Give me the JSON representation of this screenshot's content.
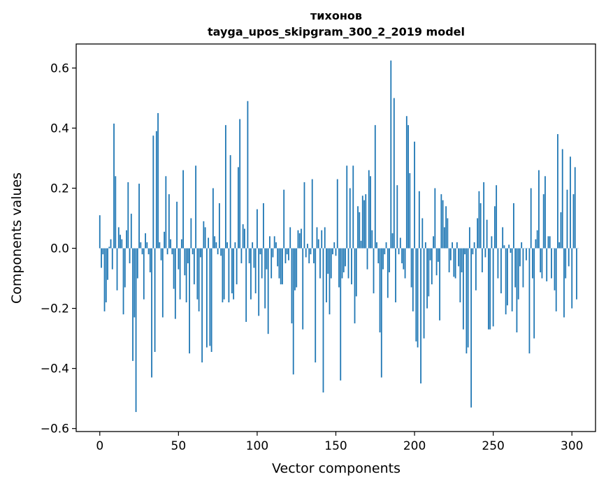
{
  "chart_data": {
    "type": "bar",
    "title": "тихонов",
    "subtitle": "tayga_upos_skipgram_300_2_2019 model",
    "xlabel": "Vector components",
    "ylabel": "Components values",
    "xlim": [
      -15,
      315
    ],
    "ylim": [
      -0.61,
      0.68
    ],
    "xticks": [
      0,
      50,
      100,
      150,
      200,
      250,
      300
    ],
    "yticks": [
      -0.6,
      -0.4,
      -0.2,
      0.0,
      0.2,
      0.4,
      0.6
    ],
    "ytick_labels": [
      "−0.6",
      "−0.4",
      "−0.2",
      "0.0",
      "0.2",
      "0.4",
      "0.6"
    ],
    "grid": false,
    "color": "#1f77b4",
    "x_start": 0,
    "values": [
      0.11,
      -0.065,
      -0.02,
      -0.21,
      -0.18,
      -0.105,
      0.005,
      0.03,
      -0.07,
      0.415,
      0.24,
      -0.14,
      0.07,
      0.045,
      0.03,
      -0.22,
      -0.13,
      0.06,
      0.22,
      -0.05,
      0.115,
      -0.375,
      -0.23,
      -0.545,
      -0.1,
      0.215,
      0.02,
      -0.02,
      -0.17,
      0.05,
      0.02,
      -0.02,
      -0.08,
      -0.43,
      0.375,
      -0.345,
      0.39,
      0.45,
      0.02,
      -0.04,
      -0.23,
      0.055,
      0.24,
      -0.02,
      0.18,
      0.03,
      -0.02,
      -0.135,
      -0.235,
      0.155,
      -0.07,
      -0.17,
      0.03,
      0.26,
      -0.09,
      -0.18,
      -0.05,
      -0.35,
      0.1,
      -0.02,
      -0.12,
      0.275,
      -0.17,
      -0.21,
      -0.03,
      -0.38,
      0.09,
      0.07,
      -0.33,
      0.035,
      -0.325,
      -0.345,
      0.2,
      0.04,
      0.02,
      -0.02,
      0.15,
      -0.025,
      -0.18,
      -0.17,
      0.41,
      0.02,
      -0.18,
      0.31,
      -0.15,
      -0.17,
      0.02,
      -0.12,
      0.27,
      0.43,
      -0.05,
      0.08,
      0.065,
      -0.245,
      0.49,
      -0.05,
      -0.17,
      0.02,
      -0.065,
      -0.15,
      0.13,
      -0.225,
      -0.02,
      -0.1,
      0.15,
      -0.2,
      -0.07,
      -0.285,
      0.04,
      -0.1,
      -0.03,
      0.04,
      0.02,
      -0.06,
      -0.1,
      -0.12,
      -0.12,
      0.195,
      -0.05,
      -0.02,
      -0.04,
      0.07,
      -0.25,
      -0.42,
      -0.14,
      -0.13,
      0.06,
      0.05,
      0.065,
      -0.27,
      0.22,
      -0.03,
      0.015,
      -0.05,
      -0.02,
      0.23,
      -0.05,
      -0.38,
      0.07,
      0.03,
      -0.1,
      0.06,
      -0.48,
      0.07,
      -0.18,
      -0.085,
      -0.22,
      -0.1,
      -0.02,
      0.02,
      -0.025,
      0.23,
      -0.13,
      -0.44,
      -0.1,
      -0.08,
      -0.06,
      0.275,
      -0.1,
      0.2,
      -0.12,
      0.275,
      -0.25,
      -0.16,
      0.14,
      0.12,
      0.025,
      0.175,
      0.16,
      0.18,
      -0.07,
      0.26,
      0.24,
      0.06,
      -0.15,
      0.41,
      0.02,
      -0.05,
      -0.28,
      -0.43,
      -0.07,
      -0.02,
      0.02,
      -0.165,
      -0.08,
      0.625,
      0.05,
      0.5,
      -0.18,
      0.21,
      -0.02,
      0.035,
      -0.05,
      -0.07,
      -0.1,
      0.44,
      0.41,
      0.25,
      -0.13,
      -0.21,
      0.355,
      -0.31,
      -0.33,
      0.19,
      -0.45,
      0.1,
      -0.3,
      0.02,
      -0.2,
      -0.16,
      -0.04,
      -0.12,
      0.04,
      0.2,
      -0.09,
      -0.045,
      -0.24,
      0.18,
      0.16,
      0.07,
      0.14,
      0.1,
      -0.08,
      -0.04,
      0.02,
      -0.095,
      -0.1,
      0.02,
      -0.06,
      -0.18,
      -0.08,
      -0.27,
      -0.02,
      -0.35,
      -0.33,
      0.07,
      -0.53,
      -0.02,
      0.02,
      -0.14,
      0.1,
      0.19,
      0.15,
      -0.08,
      0.22,
      -0.03,
      0.095,
      -0.27,
      -0.27,
      0.04,
      -0.26,
      0.14,
      0.21,
      -0.1,
      0.0,
      -0.15,
      0.07,
      0.01,
      -0.22,
      -0.19,
      0.012,
      -0.015,
      -0.21,
      0.15,
      -0.13,
      -0.28,
      -0.17,
      -0.06,
      0.02,
      -0.13,
      0.0,
      -0.04,
      0.0,
      -0.35,
      0.2,
      -0.1,
      -0.3,
      0.03,
      0.06,
      0.26,
      -0.08,
      -0.1,
      0.18,
      0.24,
      -0.11,
      0.04,
      0.04,
      -0.1,
      0.0,
      -0.14,
      -0.21,
      0.38,
      0.02,
      0.12,
      0.33,
      -0.23,
      -0.1,
      0.195,
      -0.06,
      0.305,
      -0.2,
      0.18,
      0.27,
      -0.17,
      0.0
    ]
  }
}
